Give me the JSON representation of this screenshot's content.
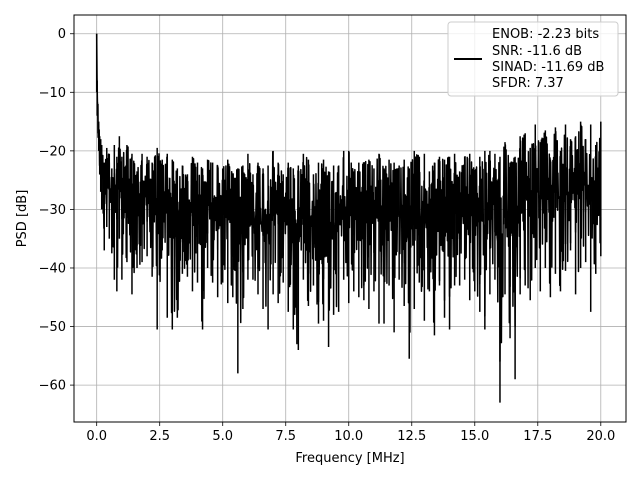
{
  "chart_data": {
    "type": "line",
    "title": "",
    "xlabel": "Frequency [MHz]",
    "ylabel": "PSD [dB]",
    "xlim": [
      -0.9,
      21.0
    ],
    "ylim": [
      -66.3,
      3.2
    ],
    "x_ticks": [
      0.0,
      2.5,
      5.0,
      7.5,
      10.0,
      12.5,
      15.0,
      17.5,
      20.0
    ],
    "x_tick_labels": [
      "0.0",
      "2.5",
      "5.0",
      "7.5",
      "10.0",
      "12.5",
      "15.0",
      "17.5",
      "20.0"
    ],
    "y_ticks": [
      0,
      -10,
      -20,
      -30,
      -40,
      -50,
      -60
    ],
    "y_tick_labels": [
      "0",
      "−10",
      "−20",
      "−30",
      "−40",
      "−50",
      "−60"
    ],
    "grid": true,
    "legend_position": "top-right",
    "legend_entries": [
      "ENOB: -2.23 bits",
      "SNR: -11.6 dB",
      "SINAD: -11.69 dB",
      "SFDR: 7.37"
    ],
    "series": [
      {
        "color": "#000000",
        "x": [
          0.0,
          0.02,
          0.05,
          0.08,
          0.12,
          0.16,
          0.2,
          0.3,
          0.4,
          0.5,
          0.6,
          0.7,
          0.8,
          0.9,
          1.0,
          1.2,
          1.4,
          1.6,
          1.8,
          2.0,
          2.2,
          2.4,
          2.6,
          2.8,
          3.0,
          3.2,
          3.4,
          3.6,
          3.8,
          4.0,
          4.2,
          4.4,
          4.6,
          4.8,
          5.0,
          5.2,
          5.4,
          5.6,
          5.8,
          6.0,
          6.2,
          6.4,
          6.6,
          6.8,
          7.0,
          7.2,
          7.4,
          7.6,
          7.8,
          8.0,
          8.2,
          8.4,
          8.6,
          8.8,
          9.0,
          9.2,
          9.4,
          9.6,
          9.8,
          10.0,
          10.2,
          10.4,
          10.6,
          10.8,
          11.0,
          11.2,
          11.4,
          11.6,
          11.8,
          12.0,
          12.2,
          12.4,
          12.6,
          12.8,
          13.0,
          13.2,
          13.4,
          13.6,
          13.8,
          14.0,
          14.2,
          14.4,
          14.6,
          14.8,
          15.0,
          15.2,
          15.4,
          15.6,
          15.8,
          16.0,
          16.2,
          16.4,
          16.6,
          16.8,
          17.0,
          17.2,
          17.4,
          17.6,
          17.8,
          18.0,
          18.2,
          18.4,
          18.6,
          18.8,
          19.0,
          19.2,
          19.4,
          19.6,
          19.8,
          20.0
        ],
        "upper": [
          0.0,
          -8.0,
          -12.0,
          -15.0,
          -17.5,
          -18.0,
          -19.0,
          -22.0,
          -19.5,
          -20.5,
          -23.0,
          -19.0,
          -21.0,
          -17.5,
          -21.0,
          -19.0,
          -20.5,
          -23.5,
          -20.5,
          -21.0,
          -22.0,
          -19.5,
          -21.5,
          -20.5,
          -21.5,
          -23.0,
          -22.5,
          -24.0,
          -21.0,
          -22.0,
          -23.0,
          -21.5,
          -22.0,
          -22.5,
          -23.0,
          -21.5,
          -24.0,
          -23.0,
          -22.5,
          -20.5,
          -24.0,
          -22.0,
          -23.0,
          -22.5,
          -20.0,
          -22.0,
          -24.0,
          -22.0,
          -23.0,
          -22.5,
          -20.5,
          -21.5,
          -24.0,
          -22.0,
          -21.5,
          -23.5,
          -22.5,
          -22.5,
          -20.0,
          -20.0,
          -23.5,
          -22.0,
          -22.0,
          -21.5,
          -23.0,
          -20.5,
          -23.0,
          -21.5,
          -22.0,
          -22.5,
          -21.5,
          -23.0,
          -20.0,
          -21.0,
          -20.5,
          -23.5,
          -22.0,
          -21.0,
          -21.5,
          -21.0,
          -20.5,
          -23.5,
          -21.0,
          -20.5,
          -23.5,
          -21.0,
          -20.0,
          -20.0,
          -20.5,
          -21.0,
          -18.5,
          -22.0,
          -21.0,
          -17.5,
          -17.0,
          -19.5,
          -15.5,
          -18.5,
          -16.5,
          -21.5,
          -16.0,
          -20.0,
          -15.5,
          -18.0,
          -17.5,
          -15.0,
          -18.0,
          -15.5,
          -19.0,
          -15.0
        ],
        "lower": [
          -10.0,
          -14.0,
          -17.0,
          -20.0,
          -24.0,
          -27.0,
          -30.0,
          -37.0,
          -33.0,
          -35.0,
          -37.5,
          -42.0,
          -44.0,
          -35.0,
          -42.0,
          -39.0,
          -44.5,
          -40.0,
          -39.0,
          -38.0,
          -41.5,
          -50.5,
          -37.0,
          -48.5,
          -50.5,
          -48.5,
          -41.0,
          -41.5,
          -44.0,
          -42.5,
          -50.5,
          -40.0,
          -42.5,
          -45.0,
          -42.5,
          -46.0,
          -45.0,
          -58.0,
          -47.0,
          -42.0,
          -42.0,
          -44.5,
          -47.0,
          -50.5,
          -44.5,
          -46.0,
          -42.5,
          -47.5,
          -50.5,
          -54.0,
          -42.0,
          -46.5,
          -43.0,
          -49.5,
          -49.0,
          -53.5,
          -48.0,
          -47.5,
          -42.0,
          -46.0,
          -44.0,
          -45.0,
          -45.5,
          -47.0,
          -44.0,
          -49.5,
          -49.5,
          -43.0,
          -51.0,
          -42.0,
          -46.5,
          -55.5,
          -47.0,
          -42.5,
          -49.0,
          -44.0,
          -51.5,
          -43.0,
          -48.5,
          -50.5,
          -43.0,
          -43.0,
          -42.0,
          -45.5,
          -44.0,
          -47.5,
          -50.5,
          -44.5,
          -42.0,
          -63.0,
          -44.5,
          -52.0,
          -59.0,
          -44.5,
          -43.0,
          -45.5,
          -40.0,
          -44.0,
          -40.0,
          -45.0,
          -41.0,
          -44.0,
          -40.5,
          -37.0,
          -44.5,
          -40.0,
          -39.0,
          -47.5,
          -41.0,
          -38.0
        ]
      }
    ]
  }
}
